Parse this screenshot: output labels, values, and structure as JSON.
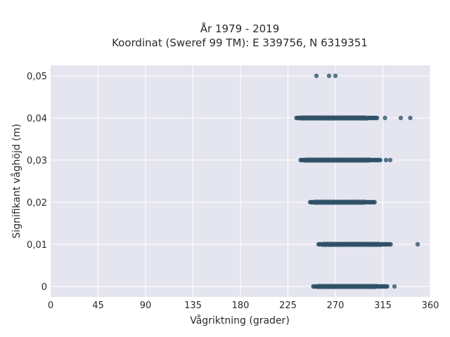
{
  "chart_data": {
    "type": "scatter",
    "title_lines": [
      "År 1979 - 2019",
      "Koordinat (Sweref 99 TM): E 339756, N 6319351"
    ],
    "xlabel": "Vågriktning (grader)",
    "ylabel": "Signifikant våghöjd (m)",
    "xlim": [
      0,
      360
    ],
    "ylim": [
      -0.0025,
      0.0525
    ],
    "xticks": [
      0,
      45,
      90,
      135,
      180,
      225,
      270,
      315,
      360
    ],
    "xtick_labels": [
      "0",
      "45",
      "90",
      "135",
      "180",
      "225",
      "270",
      "315",
      "360"
    ],
    "yticks": [
      0,
      0.01,
      0.02,
      0.03,
      0.04,
      0.05
    ],
    "ytick_labels": [
      "0",
      "0,01",
      "0,02",
      "0,03",
      "0,04",
      "0,05"
    ],
    "grid": true,
    "background_color": "#e5e5f0",
    "marker_color": "#2f5166",
    "bands": [
      {
        "y": 0.0,
        "x_min": 249,
        "x_max": 320,
        "outliers": [
          326
        ]
      },
      {
        "y": 0.01,
        "x_min": 254,
        "x_max": 323,
        "outliers": [
          348
        ]
      },
      {
        "y": 0.02,
        "x_min": 246,
        "x_max": 308,
        "outliers": []
      },
      {
        "y": 0.03,
        "x_min": 237,
        "x_max": 313,
        "outliers": [
          318,
          322
        ]
      },
      {
        "y": 0.04,
        "x_min": 233,
        "x_max": 310,
        "outliers": [
          317,
          332,
          341
        ]
      },
      {
        "y": 0.05,
        "x_min": null,
        "x_max": null,
        "outliers": [
          252,
          264,
          270
        ]
      }
    ]
  }
}
